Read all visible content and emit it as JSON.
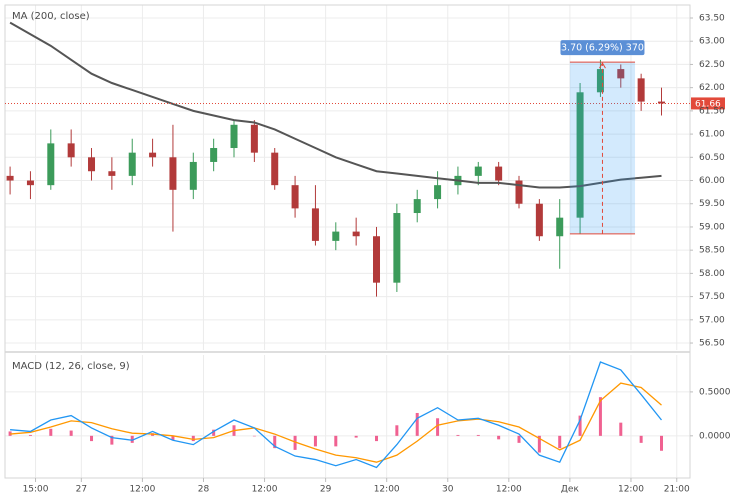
{
  "chart_data": [
    {
      "type": "candlestick",
      "title": "MA (200, close)",
      "open": [
        60.1,
        60.0,
        59.9,
        60.8,
        60.5,
        60.2,
        60.1,
        60.6,
        60.5,
        59.8,
        60.4,
        60.7,
        61.2,
        60.6,
        59.9,
        59.4,
        58.7,
        58.9,
        58.8,
        57.8,
        59.3,
        59.6,
        59.9,
        60.1,
        60.3,
        60.0,
        59.5,
        58.8,
        59.2,
        61.9,
        62.4,
        62.2,
        61.7
      ],
      "high": [
        60.3,
        60.2,
        61.1,
        61.1,
        60.7,
        60.5,
        60.9,
        60.9,
        61.2,
        60.6,
        60.9,
        61.3,
        61.3,
        60.7,
        60.1,
        59.9,
        59.1,
        59.2,
        59.0,
        59.5,
        59.8,
        60.2,
        60.3,
        60.4,
        60.4,
        60.1,
        59.6,
        59.6,
        62.1,
        62.6,
        62.5,
        62.3,
        62.0
      ],
      "low": [
        59.7,
        59.6,
        59.8,
        60.3,
        60.0,
        59.8,
        59.9,
        60.3,
        58.9,
        59.6,
        60.2,
        60.5,
        60.4,
        59.8,
        59.2,
        58.6,
        58.5,
        58.6,
        57.5,
        57.6,
        59.1,
        59.4,
        59.7,
        59.9,
        59.9,
        59.4,
        58.7,
        58.1,
        58.85,
        61.8,
        62.0,
        61.5,
        61.4
      ],
      "close": [
        60.0,
        59.9,
        60.8,
        60.5,
        60.2,
        60.1,
        60.6,
        60.5,
        59.8,
        60.4,
        60.7,
        61.2,
        60.6,
        59.9,
        59.4,
        58.7,
        58.9,
        58.8,
        57.8,
        59.3,
        59.6,
        59.9,
        60.1,
        60.3,
        60.0,
        59.5,
        58.8,
        59.2,
        61.9,
        62.4,
        62.2,
        61.7,
        61.66
      ],
      "up_color": "#3c9b5a",
      "down_color": "#b23a3a",
      "ma_values": [
        63.4,
        63.15,
        62.9,
        62.6,
        62.3,
        62.1,
        61.95,
        61.8,
        61.65,
        61.5,
        61.4,
        61.3,
        61.25,
        61.1,
        60.9,
        60.7,
        60.5,
        60.35,
        60.2,
        60.15,
        60.1,
        60.05,
        60.0,
        59.95,
        59.95,
        59.9,
        59.85,
        59.85,
        59.88,
        59.95,
        60.02,
        60.06,
        60.1
      ],
      "ma_color": "#555555",
      "last_price": 61.66,
      "last_price_color": "#e2493a",
      "annotation": {
        "text": "3.70 (6.29%) 370",
        "low": 58.85,
        "high": 62.55,
        "start": 27.5,
        "end": 30.7
      },
      "xlim": [
        -0.25,
        33.4
      ],
      "ylim": [
        56.35,
        63.78
      ],
      "yticks": [
        {
          "value": 56.5,
          "label": "56.50"
        },
        {
          "value": 57,
          "label": "57.00"
        },
        {
          "value": 57.5,
          "label": "57.50"
        },
        {
          "value": 58,
          "label": "58.00"
        },
        {
          "value": 58.5,
          "label": "58.50"
        },
        {
          "value": 59,
          "label": "59.00"
        },
        {
          "value": 59.5,
          "label": "59.50"
        },
        {
          "value": 60,
          "label": "60.00"
        },
        {
          "value": 60.5,
          "label": "60.50"
        },
        {
          "value": 61,
          "label": "61.00"
        },
        {
          "value": 61.5,
          "label": "61.50"
        },
        {
          "value": 62,
          "label": "62.00"
        },
        {
          "value": 62.5,
          "label": "62.50"
        },
        {
          "value": 63,
          "label": "63.00"
        },
        {
          "value": 63.5,
          "label": "63.50"
        }
      ],
      "grid": true
    },
    {
      "type": "macd",
      "title": "MACD (12, 26, close, 9)",
      "macd": [
        0.07,
        0.05,
        0.18,
        0.23,
        0.09,
        -0.02,
        -0.05,
        0.05,
        -0.05,
        -0.1,
        0.05,
        0.18,
        0.09,
        -0.12,
        -0.23,
        -0.27,
        -0.34,
        -0.27,
        -0.36,
        -0.1,
        0.2,
        0.32,
        0.18,
        0.2,
        0.12,
        0.02,
        -0.22,
        -0.3,
        0.18,
        0.84,
        0.75,
        0.47,
        0.18
      ],
      "signal": [
        0.02,
        0.04,
        0.1,
        0.17,
        0.15,
        0.08,
        0.03,
        0.02,
        0.0,
        -0.04,
        -0.02,
        0.06,
        0.09,
        0.02,
        -0.07,
        -0.15,
        -0.22,
        -0.25,
        -0.3,
        -0.22,
        -0.06,
        0.12,
        0.17,
        0.19,
        0.16,
        0.1,
        -0.03,
        -0.16,
        -0.05,
        0.4,
        0.6,
        0.55,
        0.35
      ],
      "histogram": [
        0.05,
        0.01,
        0.08,
        0.06,
        -0.06,
        -0.1,
        -0.08,
        0.03,
        -0.05,
        -0.06,
        0.07,
        0.12,
        0.0,
        -0.14,
        -0.16,
        -0.12,
        -0.12,
        -0.02,
        -0.06,
        0.12,
        0.26,
        0.2,
        0.01,
        0.01,
        -0.04,
        -0.08,
        -0.19,
        -0.14,
        0.23,
        0.44,
        0.15,
        -0.08,
        -0.17
      ],
      "macd_color": "#2196f3",
      "signal_color": "#ff9800",
      "histogram_color": "#e91e63",
      "xlim": [
        -0.25,
        33.4
      ],
      "xticks": [
        {
          "value": 1.25,
          "label": "15:00"
        },
        {
          "value": 3.5,
          "label": "27"
        },
        {
          "value": 6.5,
          "label": "12:00"
        },
        {
          "value": 9.5,
          "label": "28"
        },
        {
          "value": 12.5,
          "label": "12:00"
        },
        {
          "value": 15.5,
          "label": "29"
        },
        {
          "value": 18.5,
          "label": "12:00"
        },
        {
          "value": 21.5,
          "label": "30"
        },
        {
          "value": 24.5,
          "label": "12:00"
        },
        {
          "value": 27.5,
          "label": "Дек"
        },
        {
          "value": 30.5,
          "label": "12:00"
        },
        {
          "value": 32.75,
          "label": "21:00"
        }
      ],
      "ylim": [
        -0.48,
        0.92
      ],
      "yticks": [
        {
          "value": 0,
          "label": "0.0000"
        },
        {
          "value": 0.5,
          "label": "0.5000"
        }
      ],
      "grid": true
    }
  ]
}
